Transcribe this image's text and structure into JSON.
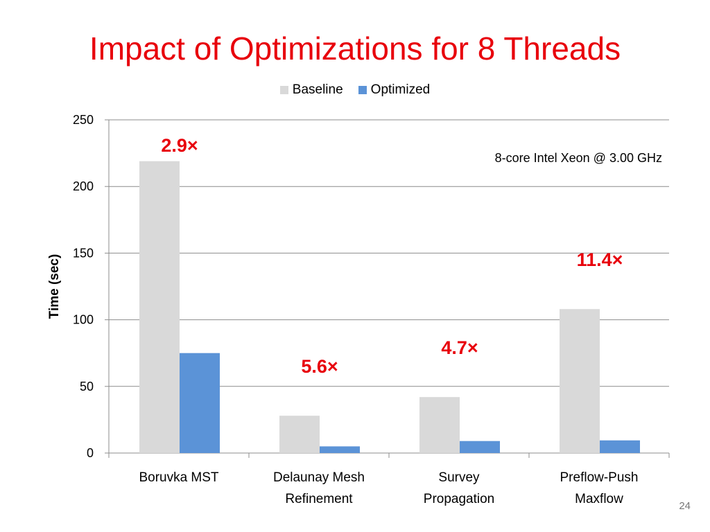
{
  "slide": {
    "title": "Impact of Optimizations for 8 Threads",
    "page_number": "24"
  },
  "chart_data": {
    "type": "bar",
    "categories": [
      [
        "Boruvka MST"
      ],
      [
        "Delaunay Mesh",
        "Refinement"
      ],
      [
        "Survey",
        "Propagation"
      ],
      [
        "Preflow-Push",
        "Maxflow"
      ]
    ],
    "series": [
      {
        "name": "Baseline",
        "color": "#d9d9d9",
        "values": [
          219,
          28,
          42,
          108
        ]
      },
      {
        "name": "Optimized",
        "color": "#5b93d7",
        "values": [
          75,
          5,
          9,
          9.5
        ]
      }
    ],
    "speedups": [
      "2.9×",
      "5.6×",
      "4.7×",
      "11.4×"
    ],
    "speedup_color": "#e8000b",
    "annotation": "8-core Intel Xeon @ 3.00 GHz",
    "ylabel": "Time (sec)",
    "xlabel": "",
    "ylim": [
      0,
      250
    ],
    "yticks": [
      0,
      50,
      100,
      150,
      200,
      250
    ],
    "grid": true,
    "legend_position": "top-center"
  }
}
